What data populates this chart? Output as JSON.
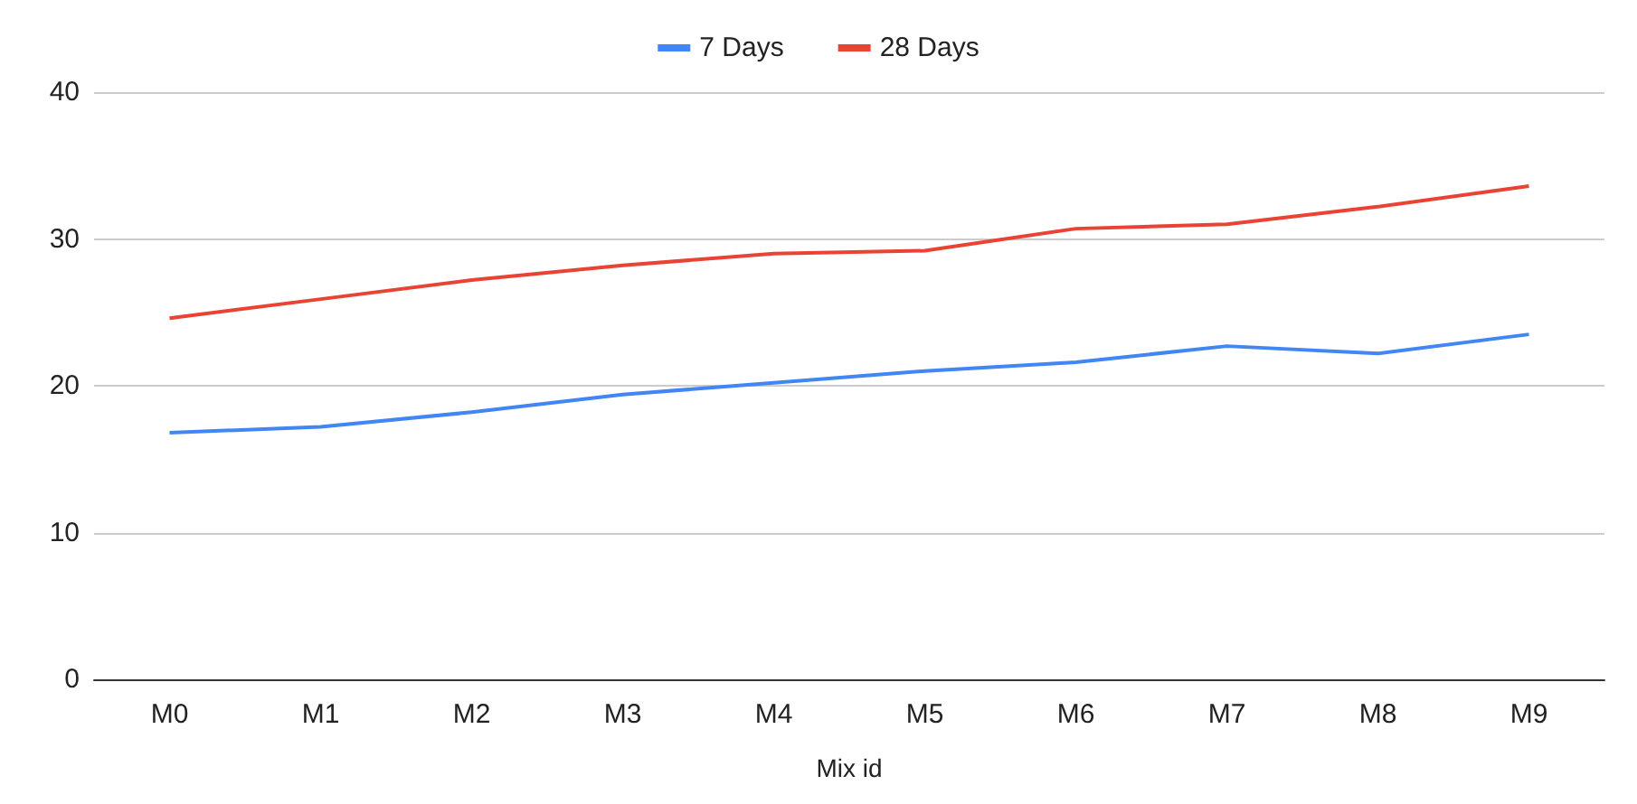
{
  "chart_data": {
    "type": "line",
    "xlabel": "Mix id",
    "categories": [
      "M0",
      "M1",
      "M2",
      "M3",
      "M4",
      "M5",
      "M6",
      "M7",
      "M8",
      "M9"
    ],
    "series": [
      {
        "name": "7 Days",
        "color": "#4285f4",
        "values": [
          16.8,
          17.2,
          18.2,
          19.4,
          20.2,
          21.0,
          21.6,
          22.7,
          22.2,
          23.5
        ]
      },
      {
        "name": "28 Days",
        "color": "#ea4335",
        "values": [
          24.6,
          25.9,
          27.2,
          28.2,
          29.0,
          29.2,
          30.7,
          31.0,
          32.2,
          33.6
        ]
      }
    ],
    "ylim": [
      0,
      40
    ],
    "yticks": [
      0,
      10,
      20,
      30,
      40
    ],
    "grid": "y",
    "legend": "top",
    "marker": "none",
    "line_style": "solid"
  }
}
